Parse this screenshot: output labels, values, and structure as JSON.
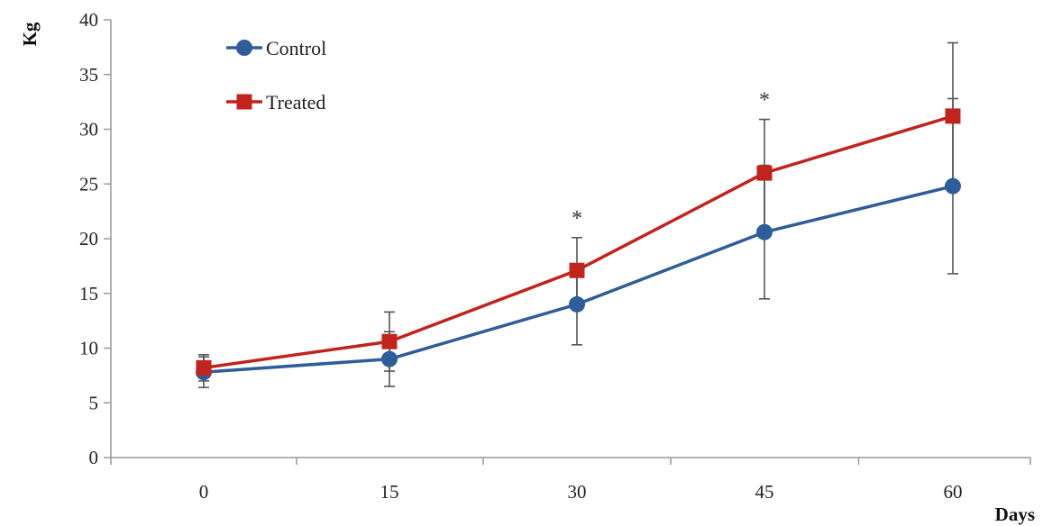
{
  "chart_data": {
    "type": "line",
    "title": "",
    "xlabel": "Days",
    "ylabel": "Kg",
    "x": [
      0,
      15,
      30,
      45,
      60
    ],
    "x_tick_labels": [
      "0",
      "15",
      "30",
      "45",
      "60"
    ],
    "ylim": [
      0,
      40
    ],
    "y_ticks": [
      0,
      5,
      10,
      15,
      20,
      25,
      30,
      35,
      40
    ],
    "y_tick_labels": [
      "0",
      "5",
      "10",
      "15",
      "20",
      "25",
      "30",
      "35",
      "40"
    ],
    "grid": false,
    "legend_position": "top-left",
    "series": [
      {
        "name": "Control",
        "color": "#2e5d9a",
        "marker": "circle",
        "values": [
          7.8,
          9.0,
          14.0,
          20.6,
          24.8
        ],
        "error_high": [
          9.2,
          11.5,
          17.7,
          26.7,
          32.8
        ],
        "error_low": [
          6.4,
          6.5,
          10.3,
          14.5,
          16.8
        ]
      },
      {
        "name": "Treated",
        "color": "#c0241d",
        "marker": "square",
        "values": [
          8.2,
          10.6,
          17.1,
          26.0,
          31.2
        ],
        "error_high": [
          9.4,
          13.3,
          20.1,
          30.9,
          37.9
        ],
        "error_low": [
          7.0,
          7.9,
          14.1,
          21.1,
          24.5
        ]
      }
    ],
    "annotations": [
      {
        "x": 30,
        "text": "*"
      },
      {
        "x": 45,
        "text": "*"
      }
    ]
  }
}
